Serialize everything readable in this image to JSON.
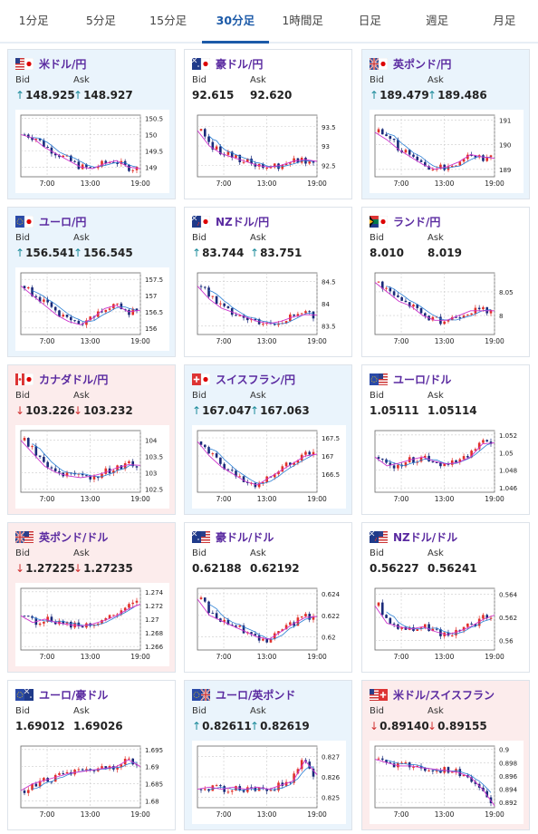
{
  "tabs": [
    {
      "label": "1分足"
    },
    {
      "label": "5分足"
    },
    {
      "label": "15分足"
    },
    {
      "label": "30分足",
      "active": true
    },
    {
      "label": "1時間足"
    },
    {
      "label": "日足"
    },
    {
      "label": "週足"
    },
    {
      "label": "月足"
    }
  ],
  "labels": {
    "bid": "Bid",
    "ask": "Ask"
  },
  "x_ticks": [
    "7:00",
    "13:00",
    "19:00"
  ],
  "colors": {
    "up": "#e0302a",
    "down": "#1a2a7a",
    "ma_short": "#2a7fd4",
    "ma_long": "#cc33cc"
  },
  "pairs": [
    {
      "name": "米ドル/円",
      "flag": "us-jp-flag",
      "bg": "blue",
      "bid": "148.925",
      "ask": "148.927",
      "dir": "up",
      "ticks": [
        "150.5",
        "150",
        "149.5",
        "149"
      ],
      "ylim": [
        148.7,
        150.6
      ],
      "trend": [
        150.0,
        149.9,
        149.6,
        149.4,
        149.2,
        149.0,
        148.95,
        149.1,
        149.2,
        149.0,
        148.95
      ]
    },
    {
      "name": "豪ドル/円",
      "flag": "au-jp-flag",
      "bg": "white",
      "bid": "92.615",
      "ask": "92.620",
      "dir": "none",
      "ticks": [
        "93.5",
        "93",
        "92.5"
      ],
      "ylim": [
        92.2,
        93.8
      ],
      "trend": [
        93.4,
        93.0,
        92.8,
        92.7,
        92.6,
        92.5,
        92.45,
        92.5,
        92.6,
        92.65,
        92.6
      ]
    },
    {
      "name": "英ポンド/円",
      "flag": "gb-jp-flag",
      "bg": "blue",
      "bid": "189.479",
      "ask": "189.486",
      "dir": "up",
      "ticks": [
        "191",
        "190",
        "189"
      ],
      "ylim": [
        188.7,
        191.2
      ],
      "trend": [
        190.5,
        190.2,
        189.8,
        189.5,
        189.2,
        189.0,
        189.1,
        189.3,
        189.6,
        189.5,
        189.45
      ]
    },
    {
      "name": "ユーロ/円",
      "flag": "eu-jp-flag",
      "bg": "blue",
      "bid": "156.541",
      "ask": "156.545",
      "dir": "up",
      "ticks": [
        "157.5",
        "157",
        "156.5",
        "156"
      ],
      "ylim": [
        155.8,
        157.7
      ],
      "trend": [
        157.3,
        157.0,
        156.7,
        156.4,
        156.2,
        156.1,
        156.3,
        156.6,
        156.7,
        156.5,
        156.55
      ]
    },
    {
      "name": "NZドル/円",
      "flag": "nz-jp-flag",
      "bg": "white",
      "bid": "83.744",
      "ask": "83.751",
      "dir": "up",
      "ticks": [
        "84.5",
        "84",
        "83.5"
      ],
      "ylim": [
        83.3,
        84.7
      ],
      "trend": [
        84.4,
        84.1,
        83.9,
        83.8,
        83.7,
        83.6,
        83.55,
        83.6,
        83.7,
        83.75,
        83.74
      ]
    },
    {
      "name": "ランド/円",
      "flag": "za-jp-flag",
      "bg": "white",
      "bid": "8.010",
      "ask": "8.019",
      "dir": "none",
      "ticks": [
        "8.05",
        "8"
      ],
      "ylim": [
        7.96,
        8.09
      ],
      "trend": [
        8.07,
        8.05,
        8.03,
        8.02,
        8.0,
        7.99,
        7.99,
        8.0,
        8.01,
        8.01,
        8.01
      ]
    },
    {
      "name": "カナダドル/円",
      "flag": "ca-jp-flag",
      "bg": "pink",
      "bid": "103.226",
      "ask": "103.232",
      "dir": "down",
      "ticks": [
        "104",
        "103.5",
        "103",
        "102.5"
      ],
      "ylim": [
        102.4,
        104.3
      ],
      "trend": [
        104.0,
        103.6,
        103.2,
        103.0,
        102.9,
        102.85,
        102.9,
        103.0,
        103.15,
        103.25,
        103.23
      ]
    },
    {
      "name": "スイスフラン/円",
      "flag": "ch-jp-flag",
      "bg": "blue",
      "bid": "167.047",
      "ask": "167.063",
      "dir": "up",
      "ticks": [
        "167.5",
        "167",
        "166.5"
      ],
      "ylim": [
        166.0,
        167.7
      ],
      "trend": [
        167.4,
        167.0,
        166.7,
        166.5,
        166.3,
        166.2,
        166.4,
        166.6,
        166.8,
        167.0,
        167.05
      ]
    },
    {
      "name": "ユーロ/ドル",
      "flag": "eu-us-flag",
      "bg": "white",
      "bid": "1.05111",
      "ask": "1.05114",
      "dir": "none",
      "ticks": [
        "1.052",
        "1.05",
        "1.048",
        "1.046"
      ],
      "ylim": [
        1.0455,
        1.0525
      ],
      "trend": [
        1.0495,
        1.0485,
        1.0488,
        1.0492,
        1.0495,
        1.049,
        1.0487,
        1.0489,
        1.0495,
        1.051,
        1.0511
      ]
    },
    {
      "name": "英ポンド/ドル",
      "flag": "gb-us-flag",
      "bg": "pink",
      "bid": "1.27225",
      "ask": "1.27235",
      "dir": "down",
      "ticks": [
        "1.274",
        "1.272",
        "1.27",
        "1.268",
        "1.266"
      ],
      "ylim": [
        1.2655,
        1.2745
      ],
      "trend": [
        1.2705,
        1.2695,
        1.27,
        1.2695,
        1.2692,
        1.269,
        1.2693,
        1.2698,
        1.2705,
        1.2715,
        1.2722
      ]
    },
    {
      "name": "豪ドル/ドル",
      "flag": "au-us-flag",
      "bg": "white",
      "bid": "0.62188",
      "ask": "0.62192",
      "dir": "none",
      "ticks": [
        "0.624",
        "0.622",
        "0.62"
      ],
      "ylim": [
        0.6188,
        0.6245
      ],
      "trend": [
        0.6235,
        0.622,
        0.6215,
        0.621,
        0.6205,
        0.62,
        0.6198,
        0.6205,
        0.6212,
        0.6218,
        0.6219
      ]
    },
    {
      "name": "NZドル/ドル",
      "flag": "nz-us-flag",
      "bg": "white",
      "bid": "0.56227",
      "ask": "0.56241",
      "dir": "none",
      "ticks": [
        "0.564",
        "0.562",
        "0.56"
      ],
      "ylim": [
        0.5592,
        0.5645
      ],
      "trend": [
        0.563,
        0.5615,
        0.5612,
        0.561,
        0.5612,
        0.5608,
        0.5605,
        0.5608,
        0.5612,
        0.5618,
        0.5622
      ]
    },
    {
      "name": "ユーロ/豪ドル",
      "flag": "eu-au-flag",
      "bg": "white",
      "bid": "1.69012",
      "ask": "1.69026",
      "dir": "none",
      "ticks": [
        "1.695",
        "1.69",
        "1.685",
        "1.68"
      ],
      "ylim": [
        1.678,
        1.696
      ],
      "trend": [
        1.683,
        1.685,
        1.686,
        1.687,
        1.688,
        1.6885,
        1.689,
        1.6895,
        1.69,
        1.692,
        1.69
      ]
    },
    {
      "name": "ユーロ/英ポンド",
      "flag": "eu-gb-flag",
      "bg": "blue",
      "bid": "0.82611",
      "ask": "0.82619",
      "dir": "up",
      "ticks": [
        "0.827",
        "0.826",
        "0.825"
      ],
      "ylim": [
        0.8245,
        0.8275
      ],
      "trend": [
        0.8254,
        0.8255,
        0.8254,
        0.8255,
        0.8254,
        0.8255,
        0.8254,
        0.8256,
        0.8258,
        0.8268,
        0.8261
      ]
    },
    {
      "name": "米ドル/スイスフラン",
      "flag": "us-ch-flag",
      "bg": "pink",
      "bid": "0.89140",
      "ask": "0.89155",
      "dir": "down",
      "ticks": [
        "0.9",
        "0.898",
        "0.896",
        "0.894",
        "0.892"
      ],
      "ylim": [
        0.8912,
        0.9005
      ],
      "trend": [
        0.8985,
        0.898,
        0.8975,
        0.8975,
        0.8972,
        0.897,
        0.8968,
        0.8965,
        0.8958,
        0.894,
        0.8915
      ]
    }
  ]
}
